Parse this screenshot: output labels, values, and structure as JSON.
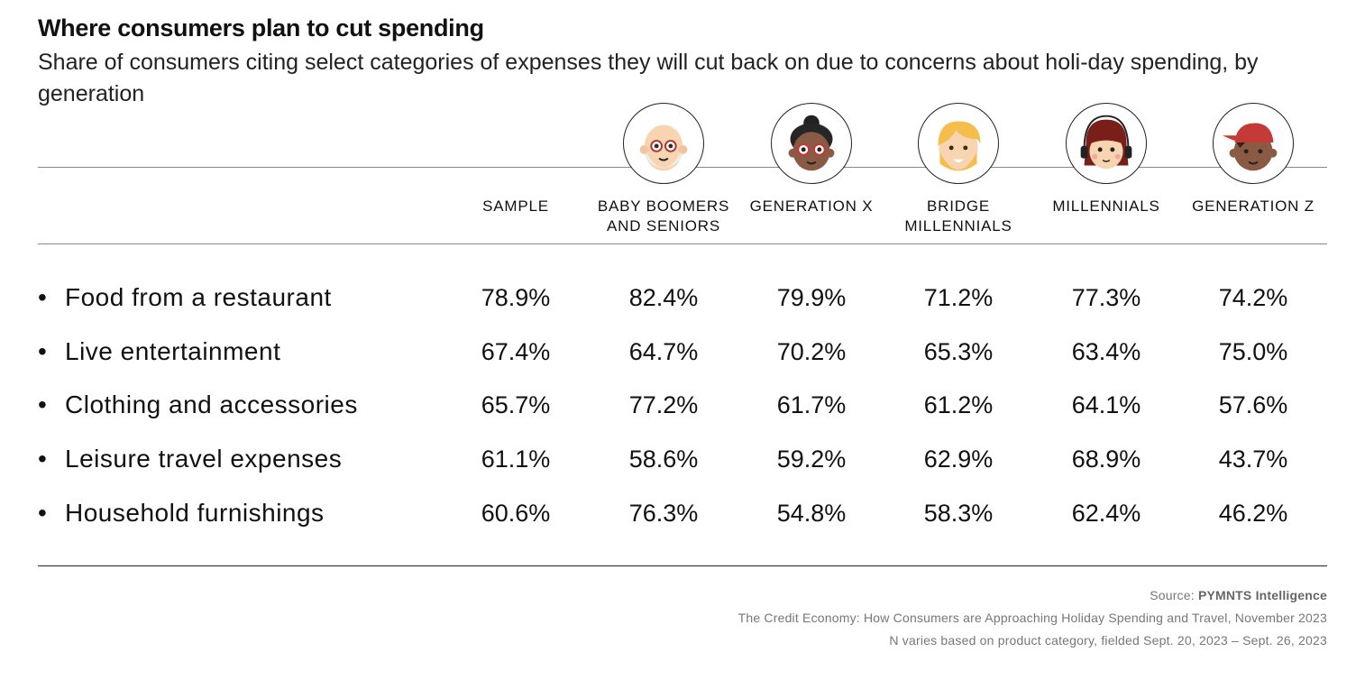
{
  "title": "Where consumers plan to cut spending",
  "subtitle": "Share of consumers citing select categories of expenses they will cut back on due to concerns about holi-day spending, by generation",
  "chart_data": {
    "type": "table",
    "columns": [
      {
        "label": "SAMPLE",
        "avatar": ""
      },
      {
        "label": "BABY BOOMERS AND SENIORS",
        "avatar": "older-man-glasses-beard-avatar"
      },
      {
        "label": "GENERATION X",
        "avatar": "woman-bun-glasses-avatar"
      },
      {
        "label": "BRIDGE MILLENNIALS",
        "avatar": "blond-bearded-man-avatar"
      },
      {
        "label": "MILLENNIALS",
        "avatar": "woman-headphones-avatar"
      },
      {
        "label": "GENERATION Z",
        "avatar": "boy-red-cap-avatar"
      }
    ],
    "rows": [
      {
        "label": "Food from a restaurant",
        "values": [
          "78.9%",
          "82.4%",
          "79.9%",
          "71.2%",
          "77.3%",
          "74.2%"
        ]
      },
      {
        "label": "Live entertainment",
        "values": [
          "67.4%",
          "64.7%",
          "70.2%",
          "65.3%",
          "63.4%",
          "75.0%"
        ]
      },
      {
        "label": "Clothing and accessories",
        "values": [
          "65.7%",
          "77.2%",
          "61.7%",
          "61.2%",
          "64.1%",
          "57.6%"
        ]
      },
      {
        "label": "Leisure travel expenses",
        "values": [
          "61.1%",
          "58.6%",
          "59.2%",
          "62.9%",
          "68.9%",
          "43.7%"
        ]
      },
      {
        "label": "Household furnishings",
        "values": [
          "60.6%",
          "76.3%",
          "54.8%",
          "58.3%",
          "62.4%",
          "46.2%"
        ]
      }
    ],
    "bullet": "•"
  },
  "footer": {
    "source_label": "Source: ",
    "source_name": "PYMNTS Intelligence",
    "report": "The Credit Economy: How Consumers are Approaching Holiday Spending and Travel, November 2023",
    "note": "N varies based on product category, fielded Sept. 20, 2023 – Sept. 26, 2023"
  }
}
